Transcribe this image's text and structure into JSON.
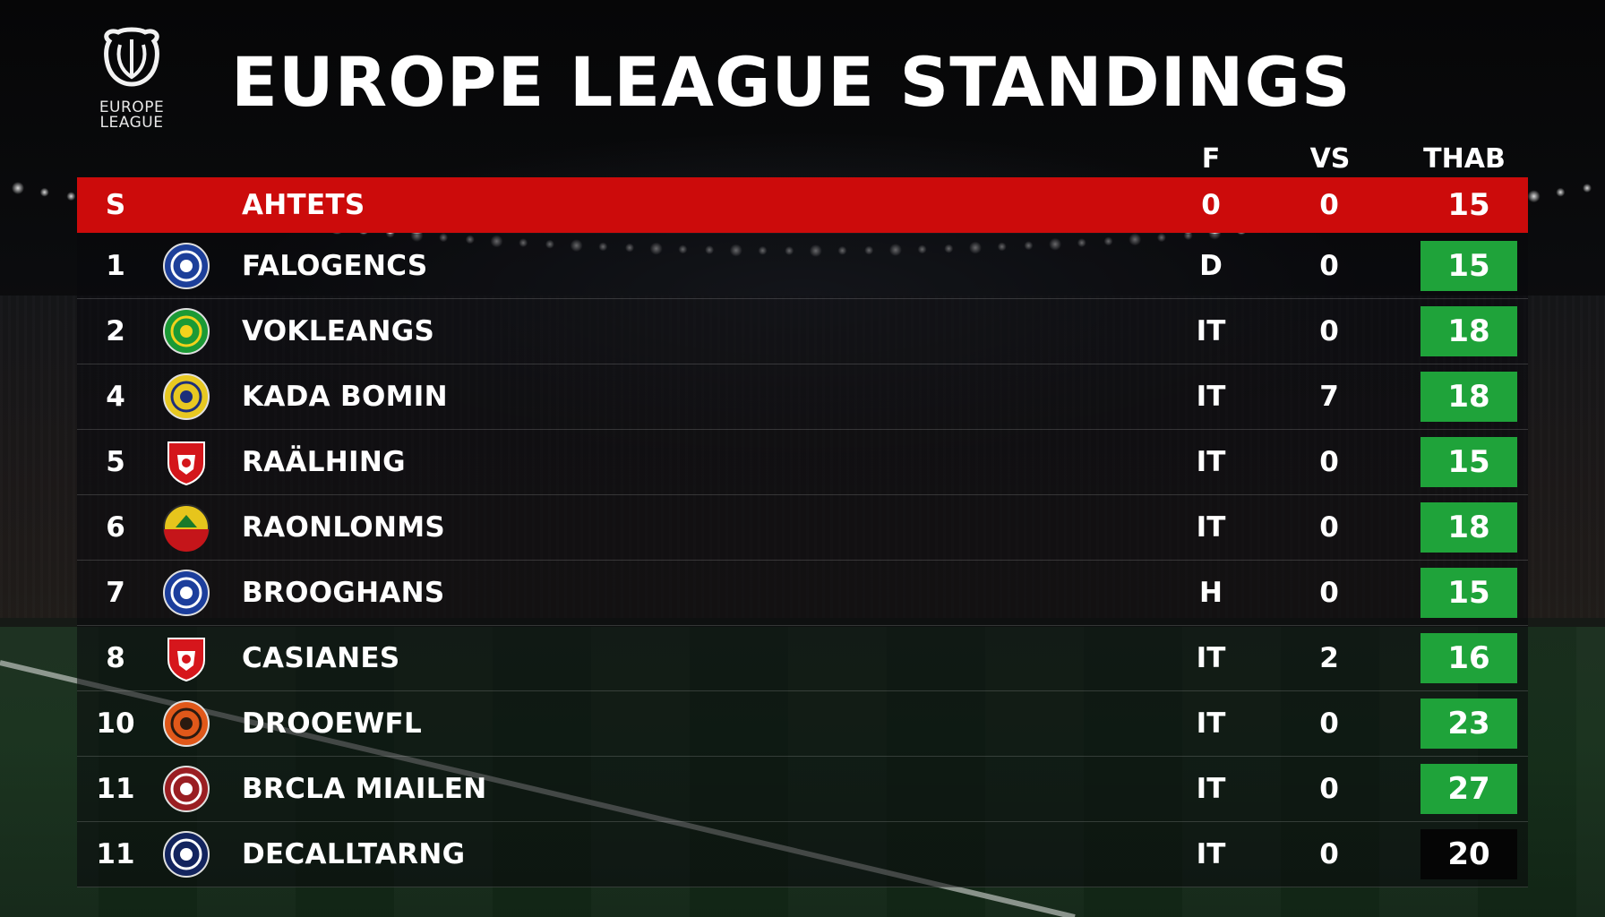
{
  "title": "EUROPE LEAGUE STANDINGS",
  "logo": {
    "icon": "europe-league-trophy-icon",
    "line1": "EUROPE",
    "line2": "LEAGUE"
  },
  "columns": {
    "f": "F",
    "vs": "VS",
    "thab": "THAB"
  },
  "header_row": {
    "pos": "S",
    "team": "AHTETS",
    "f": "0",
    "vs": "0",
    "pts": "15"
  },
  "colors": {
    "header_red": "#cc0b0b",
    "points_green": "#1fa33a"
  },
  "rows": [
    {
      "pos": "1",
      "team": "FALOGENCS",
      "f": "D",
      "vs": "0",
      "pts": "15",
      "crest": "blue-round-crest-icon",
      "crest_colors": [
        "#1d3f9a",
        "#ffffff"
      ]
    },
    {
      "pos": "2",
      "team": "VOKLEANGS",
      "f": "IT",
      "vs": "0",
      "pts": "18",
      "crest": "green-round-crest-icon",
      "crest_colors": [
        "#1b9a35",
        "#f2d21c"
      ]
    },
    {
      "pos": "4",
      "team": "KADA BOMIN",
      "f": "IT",
      "vs": "7",
      "pts": "18",
      "crest": "yellow-round-crest-icon",
      "crest_colors": [
        "#e8c821",
        "#1d2e7a"
      ]
    },
    {
      "pos": "5",
      "team": "RAÄLHING",
      "f": "IT",
      "vs": "0",
      "pts": "15",
      "crest": "red-shield-crest-icon",
      "crest_colors": [
        "#d4161b",
        "#ffffff"
      ]
    },
    {
      "pos": "6",
      "team": "RAONLONMS",
      "f": "IT",
      "vs": "0",
      "pts": "18",
      "crest": "yellow-red-crest-icon",
      "crest_colors": [
        "#e6c51c",
        "#c5151a"
      ]
    },
    {
      "pos": "7",
      "team": "BROOGHANS",
      "f": "H",
      "vs": "0",
      "pts": "15",
      "crest": "blue-round-crest-icon",
      "crest_colors": [
        "#1c3e9c",
        "#ffffff"
      ]
    },
    {
      "pos": "8",
      "team": "CASIANES",
      "f": "IT",
      "vs": "2",
      "pts": "16",
      "crest": "red-shield-crest-icon",
      "crest_colors": [
        "#d6161c",
        "#ffffff"
      ]
    },
    {
      "pos": "10",
      "team": "DROOEWFL",
      "f": "IT",
      "vs": "0",
      "pts": "23",
      "crest": "orange-round-crest-icon",
      "crest_colors": [
        "#e0581a",
        "#2a1a10"
      ]
    },
    {
      "pos": "11",
      "team": "BRCLA MIAILEN",
      "f": "IT",
      "vs": "0",
      "pts": "27",
      "crest": "maroon-round-crest-icon",
      "crest_colors": [
        "#9a1e22",
        "#ffffff"
      ]
    },
    {
      "pos": "11",
      "team": "DECALLTARNG",
      "f": "IT",
      "vs": "0",
      "pts": "20",
      "crest": "navy-round-crest-icon",
      "crest_colors": [
        "#13245e",
        "#ffffff"
      ]
    }
  ]
}
